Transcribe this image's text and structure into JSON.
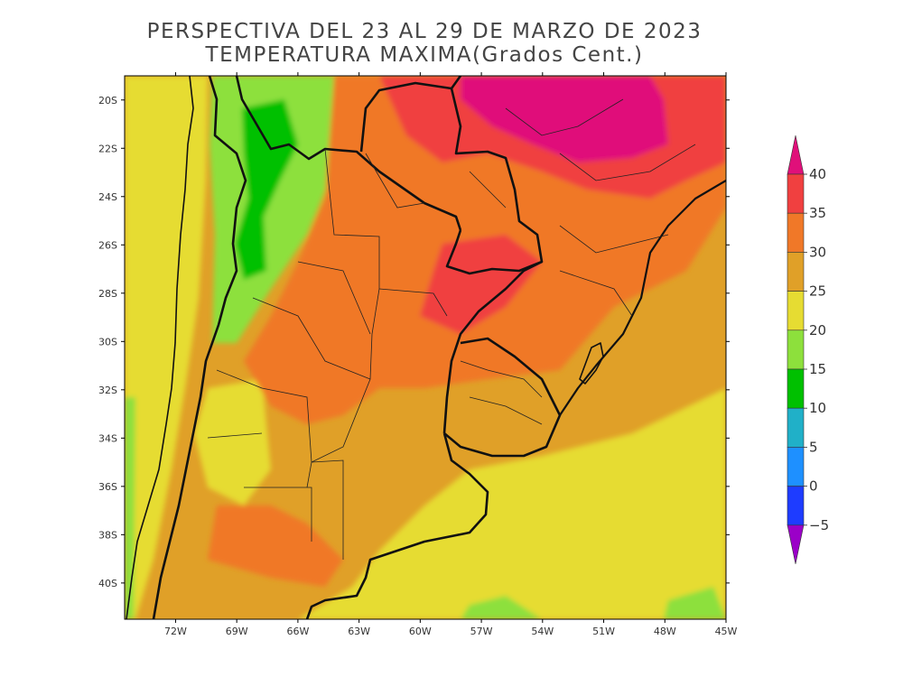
{
  "title": {
    "line1": "PERSPECTIVA DEL 23 AL 29  DE MARZO DE 2023",
    "line2": "TEMPERATURA MAXIMA(Grados Cent.)"
  },
  "map": {
    "lat_ticks": [
      "20S",
      "22S",
      "24S",
      "26S",
      "28S",
      "30S",
      "32S",
      "34S",
      "36S",
      "38S",
      "40S"
    ],
    "lon_ticks": [
      "72W",
      "69W",
      "66W",
      "63W",
      "60W",
      "57W",
      "54W",
      "51W",
      "48W",
      "45W"
    ],
    "lon_range": [
      -74.5,
      -45
    ],
    "lat_range": [
      -41.5,
      -19
    ]
  },
  "colorbar": {
    "levels": [
      "−5",
      "0",
      "5",
      "10",
      "15",
      "20",
      "25",
      "30",
      "35",
      "40"
    ],
    "colors": [
      "#9b00c8",
      "#1e3cff",
      "#1e90ff",
      "#20b0c8",
      "#00c000",
      "#8de03c",
      "#e6dc32",
      "#e0a028",
      "#f07828",
      "#f04040",
      "#e0107a"
    ]
  }
}
